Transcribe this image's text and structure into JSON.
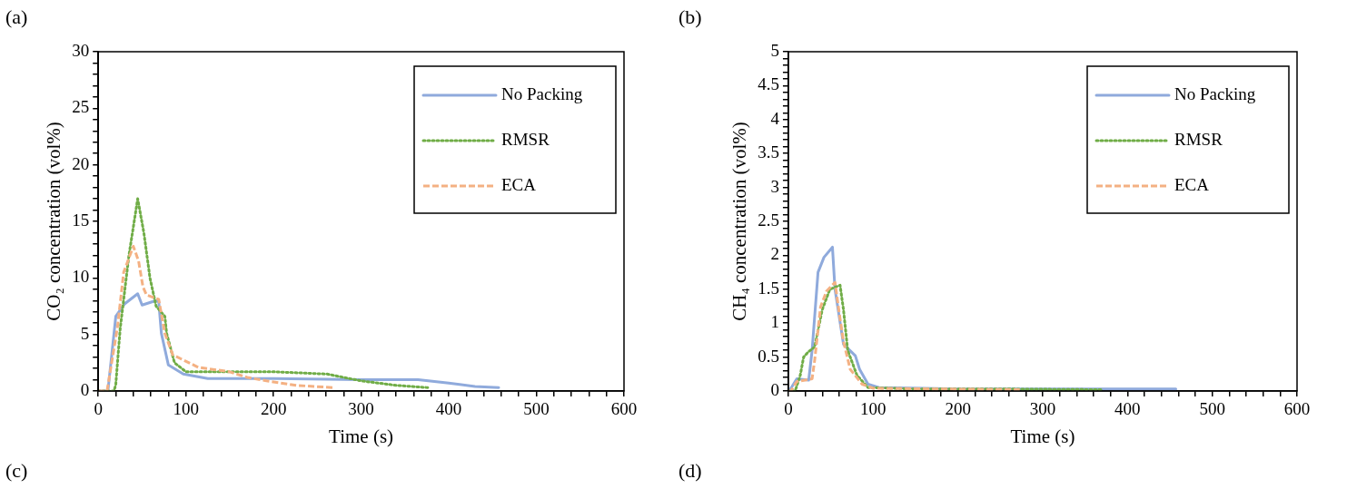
{
  "chart_data": [
    {
      "type": "line",
      "title": "(a)",
      "annotations": [
        "(c)"
      ],
      "xlabel": "Time (s)",
      "ylabel": "CO₂ concentration (vol%)",
      "xlim": [
        0,
        600
      ],
      "ylim": [
        0,
        30
      ],
      "xticks": [
        0,
        {
          "value": 20,
          "label": null
        },
        {
          "value": 40,
          "label": null
        },
        {
          "value": 60,
          "label": null
        },
        {
          "value": 80,
          "label": null
        },
        100,
        {
          "value": 120,
          "label": null
        },
        {
          "value": 140,
          "label": null
        },
        {
          "value": 160,
          "label": null
        },
        {
          "value": 180,
          "label": null
        },
        200,
        {
          "value": 220,
          "label": null
        },
        {
          "value": 240,
          "label": null
        },
        {
          "value": 260,
          "label": null
        },
        {
          "value": 280,
          "label": null
        },
        300,
        {
          "value": 320,
          "label": null
        },
        {
          "value": 340,
          "label": null
        },
        {
          "value": 360,
          "label": null
        },
        {
          "value": 380,
          "label": null
        },
        400,
        {
          "value": 420,
          "label": null
        },
        {
          "value": 440,
          "label": null
        },
        {
          "value": 460,
          "label": null
        },
        {
          "value": 480,
          "label": null
        },
        500,
        {
          "value": 520,
          "label": null
        },
        {
          "value": 540,
          "label": null
        },
        {
          "value": 560,
          "label": null
        },
        {
          "value": 580,
          "label": null
        },
        600
      ],
      "yticks": [
        0,
        {
          "value": 1,
          "label": null
        },
        {
          "value": 2,
          "label": null
        },
        {
          "value": 3,
          "label": null
        },
        {
          "value": 4,
          "label": null
        },
        5,
        {
          "value": 6,
          "label": null
        },
        {
          "value": 7,
          "label": null
        },
        {
          "value": 8,
          "label": null
        },
        {
          "value": 9,
          "label": null
        },
        10,
        {
          "value": 11,
          "label": null
        },
        {
          "value": 12,
          "label": null
        },
        {
          "value": 13,
          "label": null
        },
        {
          "value": 14,
          "label": null
        },
        15,
        {
          "value": 16,
          "label": null
        },
        {
          "value": 17,
          "label": null
        },
        {
          "value": 18,
          "label": null
        },
        {
          "value": 19,
          "label": null
        },
        20,
        {
          "value": 21,
          "label": null
        },
        {
          "value": 22,
          "label": null
        },
        {
          "value": 23,
          "label": null
        },
        {
          "value": 24,
          "label": null
        },
        25,
        {
          "value": 26,
          "label": null
        },
        {
          "value": 27,
          "label": null
        },
        {
          "value": 28,
          "label": null
        },
        {
          "value": 29,
          "label": null
        },
        30
      ],
      "legend": "top right",
      "marker": "none",
      "series": [
        {
          "name": "No Packing",
          "color": "#8faadc",
          "line_style": "solid",
          "x": [
            0,
            11,
            20,
            30,
            45,
            50,
            66,
            69,
            72,
            80,
            97,
            125,
            200,
            300,
            365,
            400,
            430,
            457
          ],
          "values": [
            0,
            0,
            6.6,
            7.7,
            8.6,
            7.6,
            8.0,
            7.9,
            5.1,
            2.3,
            1.5,
            1.1,
            1.1,
            1.0,
            1.0,
            0.7,
            0.4,
            0.3
          ]
        },
        {
          "name": "RMSR",
          "color": "#70ad47",
          "line_style": "dotted",
          "x": [
            0,
            18,
            20,
            25,
            35,
            45,
            52,
            59,
            66,
            76,
            78,
            87,
            100,
            129,
            200,
            261,
            300,
            340,
            376
          ],
          "values": [
            0,
            0,
            0.6,
            5.5,
            12,
            17,
            14,
            10,
            7.5,
            6.6,
            5.1,
            2.5,
            1.7,
            1.7,
            1.7,
            1.5,
            0.9,
            0.5,
            0.3
          ]
        },
        {
          "name": "ECA",
          "color": "#f4b183",
          "line_style": "dashed",
          "x": [
            0,
            10,
            22,
            29,
            40,
            46,
            51,
            55,
            69,
            76,
            85,
            114,
            150,
            170,
            192,
            226,
            268
          ],
          "values": [
            0,
            0,
            5.7,
            10.5,
            12.8,
            11.5,
            9.2,
            8.5,
            8.1,
            5.1,
            3.2,
            2.1,
            1.7,
            1.2,
            0.9,
            0.5,
            0.3
          ]
        }
      ]
    },
    {
      "type": "line",
      "title": "(b)",
      "annotations": [
        "(d)"
      ],
      "xlabel": "Time (s)",
      "ylabel": "CH₄ concentration (vol%)",
      "xlim": [
        0,
        600
      ],
      "ylim": [
        0,
        5
      ],
      "xticks": [
        0,
        {
          "value": 20,
          "label": null
        },
        {
          "value": 40,
          "label": null
        },
        {
          "value": 60,
          "label": null
        },
        {
          "value": 80,
          "label": null
        },
        100,
        {
          "value": 120,
          "label": null
        },
        {
          "value": 140,
          "label": null
        },
        {
          "value": 160,
          "label": null
        },
        {
          "value": 180,
          "label": null
        },
        200,
        {
          "value": 220,
          "label": null
        },
        {
          "value": 240,
          "label": null
        },
        {
          "value": 260,
          "label": null
        },
        {
          "value": 280,
          "label": null
        },
        300,
        {
          "value": 320,
          "label": null
        },
        {
          "value": 340,
          "label": null
        },
        {
          "value": 360,
          "label": null
        },
        {
          "value": 380,
          "label": null
        },
        400,
        {
          "value": 420,
          "label": null
        },
        {
          "value": 440,
          "label": null
        },
        {
          "value": 460,
          "label": null
        },
        {
          "value": 480,
          "label": null
        },
        500,
        {
          "value": 520,
          "label": null
        },
        {
          "value": 540,
          "label": null
        },
        {
          "value": 560,
          "label": null
        },
        {
          "value": 580,
          "label": null
        },
        600
      ],
      "yticks": [
        0,
        {
          "value": 0.1,
          "label": null
        },
        {
          "value": 0.2,
          "label": null
        },
        {
          "value": 0.3,
          "label": null
        },
        {
          "value": 0.4,
          "label": null
        },
        0.5,
        {
          "value": 0.6,
          "label": null
        },
        {
          "value": 0.7,
          "label": null
        },
        {
          "value": 0.8,
          "label": null
        },
        {
          "value": 0.9,
          "label": null
        },
        1,
        {
          "value": 1.1,
          "label": null
        },
        {
          "value": 1.2,
          "label": null
        },
        {
          "value": 1.3,
          "label": null
        },
        {
          "value": 1.4,
          "label": null
        },
        1.5,
        {
          "value": 1.6,
          "label": null
        },
        {
          "value": 1.7,
          "label": null
        },
        {
          "value": 1.8,
          "label": null
        },
        {
          "value": 1.9,
          "label": null
        },
        2,
        {
          "value": 2.1,
          "label": null
        },
        {
          "value": 2.2,
          "label": null
        },
        {
          "value": 2.3,
          "label": null
        },
        {
          "value": 2.4,
          "label": null
        },
        2.5,
        {
          "value": 2.6,
          "label": null
        },
        {
          "value": 2.7,
          "label": null
        },
        {
          "value": 2.8,
          "label": null
        },
        {
          "value": 2.9,
          "label": null
        },
        3,
        {
          "value": 3.1,
          "label": null
        },
        {
          "value": 3.2,
          "label": null
        },
        {
          "value": 3.3,
          "label": null
        },
        {
          "value": 3.4,
          "label": null
        },
        3.5,
        {
          "value": 3.6,
          "label": null
        },
        {
          "value": 3.7,
          "label": null
        },
        {
          "value": 3.8,
          "label": null
        },
        {
          "value": 3.9,
          "label": null
        },
        4,
        {
          "value": 4.1,
          "label": null
        },
        {
          "value": 4.2,
          "label": null
        },
        {
          "value": 4.3,
          "label": null
        },
        {
          "value": 4.4,
          "label": null
        },
        4.5,
        {
          "value": 4.6,
          "label": null
        },
        {
          "value": 4.7,
          "label": null
        },
        {
          "value": 4.8,
          "label": null
        },
        {
          "value": 4.9,
          "label": null
        },
        5
      ],
      "legend": "top right",
      "marker": "none",
      "series": [
        {
          "name": "No Packing",
          "color": "#8faadc",
          "line_style": "solid",
          "x": [
            0,
            3,
            10,
            24,
            28,
            35,
            42,
            52,
            55,
            65,
            79,
            84,
            94,
            107,
            200,
            300,
            400,
            457
          ],
          "values": [
            0,
            0.04,
            0.18,
            0.16,
            0.6,
            1.75,
            1.97,
            2.12,
            1.5,
            0.69,
            0.52,
            0.32,
            0.1,
            0.05,
            0.03,
            0.03,
            0.03,
            0.03
          ]
        },
        {
          "name": "RMSR",
          "color": "#70ad47",
          "line_style": "dotted",
          "x": [
            0,
            8,
            14,
            18,
            23,
            31,
            40,
            49,
            61,
            65,
            70,
            81,
            94,
            150,
            250,
            369
          ],
          "values": [
            0,
            0,
            0.23,
            0.5,
            0.57,
            0.65,
            1.2,
            1.5,
            1.56,
            1.2,
            0.6,
            0.23,
            0.05,
            0.03,
            0.03,
            0.02
          ]
        },
        {
          "name": "ECA",
          "color": "#f4b183",
          "line_style": "dashed",
          "x": [
            0,
            3,
            10,
            28,
            31,
            38,
            45,
            55,
            60,
            65,
            73,
            87,
            100,
            180,
            273
          ],
          "values": [
            0,
            0,
            0.14,
            0.18,
            0.45,
            1.24,
            1.47,
            1.6,
            1.15,
            0.73,
            0.32,
            0.1,
            0.04,
            0.03,
            0.02
          ]
        }
      ]
    }
  ]
}
